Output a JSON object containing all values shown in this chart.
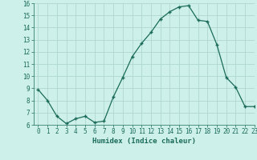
{
  "x": [
    0,
    1,
    2,
    3,
    4,
    5,
    6,
    7,
    8,
    9,
    10,
    11,
    12,
    13,
    14,
    15,
    16,
    17,
    18,
    19,
    20,
    21,
    22,
    23
  ],
  "y": [
    8.9,
    8.0,
    6.7,
    6.1,
    6.5,
    6.7,
    6.2,
    6.3,
    8.3,
    9.9,
    11.6,
    12.7,
    13.6,
    14.7,
    15.3,
    15.7,
    15.8,
    14.6,
    14.5,
    12.6,
    9.9,
    9.1,
    7.5,
    7.5
  ],
  "xlabel": "Humidex (Indice chaleur)",
  "ylim": [
    6,
    16
  ],
  "xlim": [
    -0.5,
    23
  ],
  "yticks": [
    6,
    7,
    8,
    9,
    10,
    11,
    12,
    13,
    14,
    15,
    16
  ],
  "xticks": [
    0,
    1,
    2,
    3,
    4,
    5,
    6,
    7,
    8,
    9,
    10,
    11,
    12,
    13,
    14,
    15,
    16,
    17,
    18,
    19,
    20,
    21,
    22,
    23
  ],
  "line_color": "#1a6b5a",
  "marker": "+",
  "bg_color": "#cef0ea",
  "grid_color": "#aed8d0",
  "xlabel_color": "#1a6b5a"
}
